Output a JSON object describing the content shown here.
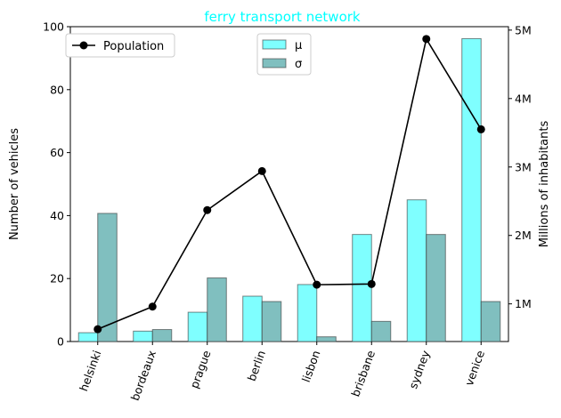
{
  "chart_data": {
    "type": "bar+line",
    "title": "ferry transport network",
    "title_color": "#00ffff",
    "categories": [
      "helsinki",
      "bordeaux",
      "prague",
      "berlin",
      "lisbon",
      "brisbane",
      "sydney",
      "venice"
    ],
    "series": [
      {
        "name": "μ",
        "axis": "left",
        "type": "bar",
        "color": "#7fffff",
        "values": [
          2.8,
          3.3,
          9.3,
          14.4,
          18.1,
          34.0,
          45.0,
          96.2
        ]
      },
      {
        "name": "σ",
        "axis": "left",
        "type": "bar",
        "color": "#80bfbf",
        "values": [
          40.7,
          3.8,
          20.2,
          12.7,
          1.5,
          6.4,
          34.0,
          12.7
        ]
      },
      {
        "name": "Population",
        "axis": "right",
        "type": "line",
        "color": "#000000",
        "values": [
          0.63,
          0.96,
          2.37,
          2.94,
          1.28,
          1.29,
          4.87,
          3.55
        ]
      }
    ],
    "ylabel": "Number of vehicles",
    "y2label": "Millions of inhabitants",
    "ylim": [
      0,
      100
    ],
    "y2lim": [
      0.45,
      5.05
    ],
    "yticks": [
      0,
      20,
      40,
      60,
      80,
      100
    ],
    "y2ticks": [
      1,
      2,
      3,
      4,
      5
    ],
    "y2ticklabels": [
      "1M",
      "2M",
      "3M",
      "4M",
      "5M"
    ],
    "legend_line_placement": "top-left",
    "legend_bars_placement": "top-center",
    "grid": false
  }
}
